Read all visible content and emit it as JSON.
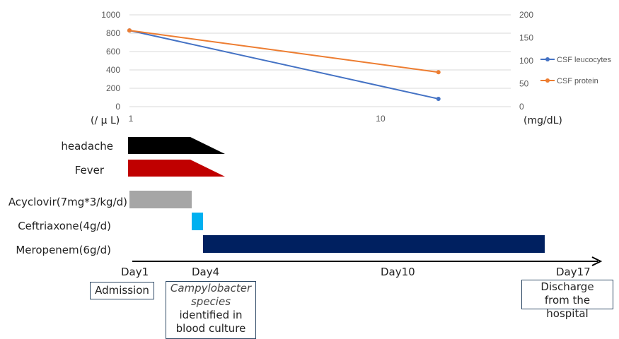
{
  "chart_data": {
    "type": "line",
    "x_scale": "log",
    "x_ticks": [
      "1",
      "10"
    ],
    "y_left_ticks": [
      "0",
      "200",
      "400",
      "600",
      "800",
      "1000"
    ],
    "y_left_unit": "(/ μ L)",
    "y_left_range": [
      0,
      1000
    ],
    "y_right_ticks": [
      "0",
      "50",
      "100",
      "150",
      "200"
    ],
    "y_right_unit": "(mg/dL)",
    "y_right_range": [
      0,
      200
    ],
    "legend_position": "right",
    "grid": "horizontal",
    "series": [
      {
        "name": "CSF leucocytes",
        "axis": "left",
        "color": "#4472C4",
        "points": [
          {
            "x": 1,
            "y": 830
          },
          {
            "x": 17,
            "y": 85
          }
        ]
      },
      {
        "name": "CSF protein",
        "axis": "right",
        "color": "#ED7D31",
        "points": [
          {
            "x": 1,
            "y": 166
          },
          {
            "x": 17,
            "y": 75
          }
        ]
      }
    ]
  },
  "timeline": {
    "rows": [
      {
        "label": "headache",
        "color": "#000000",
        "start_day": 1,
        "end_day": 3,
        "tapered": true
      },
      {
        "label": "Fever",
        "color": "#C00000",
        "start_day": 1,
        "end_day": 3,
        "tapered": true
      },
      {
        "label": "Acyclovir(7mg*3/kg/d)",
        "color": "#A6A6A6",
        "start_day": 1,
        "end_day": 3,
        "tapered": false
      },
      {
        "label": "Ceftriaxone(4g/d)",
        "color": "#00B0F0",
        "start_day": 3,
        "end_day": 4,
        "tapered": false
      },
      {
        "label": "Meropenem(6g/d)",
        "color": "#002060",
        "start_day": 4,
        "end_day": 17,
        "tapered": false
      }
    ],
    "day_labels": [
      "Day1",
      "Day4",
      "Day10",
      "Day17"
    ],
    "events": {
      "admission": "Admission",
      "culture_italic_1": "Campylobacter",
      "culture_italic_2": "species",
      "culture_line_3": "identified in",
      "culture_line_4": "blood culture",
      "discharge_line_1": "Discharge",
      "discharge_line_2": "from the hospital"
    }
  }
}
